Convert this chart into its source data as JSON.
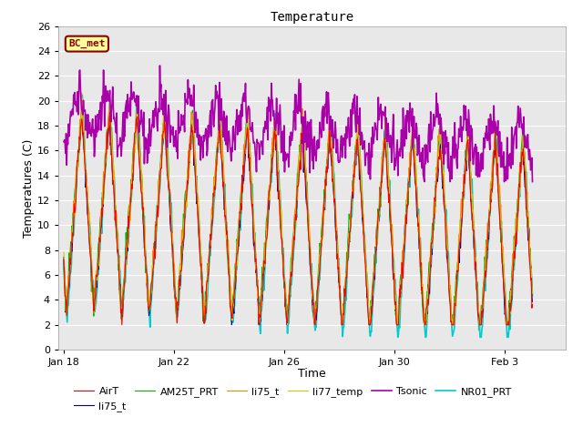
{
  "title": "Temperature",
  "xlabel": "Time",
  "ylabel": "Temperatures (C)",
  "ylim": [
    0,
    26
  ],
  "yticks": [
    0,
    2,
    4,
    6,
    8,
    10,
    12,
    14,
    16,
    18,
    20,
    22,
    24,
    26
  ],
  "xtick_labels": [
    "Jan 18",
    "Jan 22",
    "Jan 26",
    "Jan 30",
    "Feb 3"
  ],
  "xtick_positions": [
    0,
    4,
    8,
    12,
    16
  ],
  "xmin": -0.2,
  "xmax": 18.2,
  "annotation_text": "BC_met",
  "annotation_color": "#8B0000",
  "annotation_bg": "#FFFF99",
  "fig_bg": "#FFFFFF",
  "plot_bg": "#E8E8E8",
  "grid_color": "#FFFFFF",
  "series": [
    {
      "label": "AirT",
      "color": "#FF0000",
      "lw": 0.8,
      "zorder": 4
    },
    {
      "label": "li75_t",
      "color": "#000099",
      "lw": 0.8,
      "zorder": 3
    },
    {
      "label": "AM25T_PRT",
      "color": "#00BB00",
      "lw": 0.8,
      "zorder": 3
    },
    {
      "label": "li75_t",
      "color": "#FF8800",
      "lw": 0.8,
      "zorder": 3
    },
    {
      "label": "li77_temp",
      "color": "#CCCC00",
      "lw": 0.8,
      "zorder": 3
    },
    {
      "label": "Tsonic",
      "color": "#AA00AA",
      "lw": 1.2,
      "zorder": 5
    },
    {
      "label": "NR01_PRT",
      "color": "#00CCCC",
      "lw": 1.2,
      "zorder": 2
    }
  ]
}
